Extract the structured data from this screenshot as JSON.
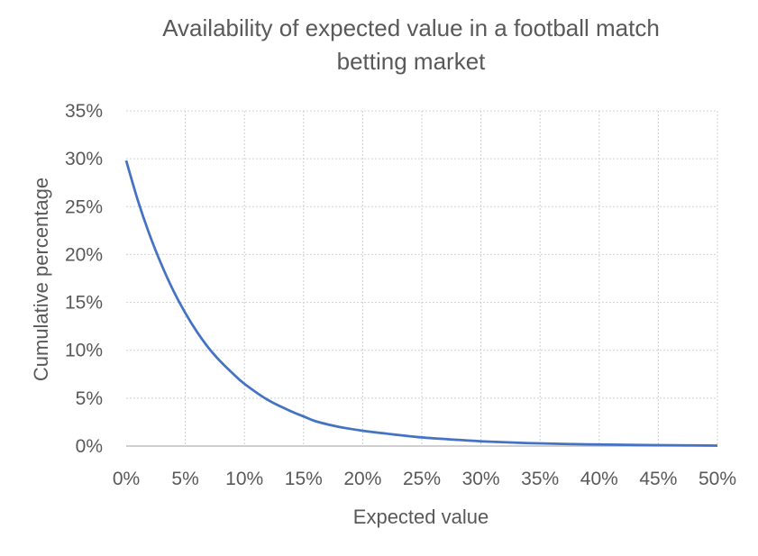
{
  "chart_data": {
    "type": "line",
    "title": "Availability of expected value in a football match betting market",
    "title_lines": [
      "Availability of expected value in a football match",
      "betting market"
    ],
    "xlabel": "Expected value",
    "ylabel": "Cumulative percentage",
    "xlim": [
      0,
      0.5
    ],
    "ylim": [
      0,
      0.35
    ],
    "x_ticks": [
      0,
      0.05,
      0.1,
      0.15,
      0.2,
      0.25,
      0.3,
      0.35,
      0.4,
      0.45,
      0.5
    ],
    "x_tick_labels": [
      "0%",
      "5%",
      "10%",
      "15%",
      "20%",
      "25%",
      "30%",
      "35%",
      "40%",
      "45%",
      "50%"
    ],
    "y_ticks": [
      0,
      0.05,
      0.1,
      0.15,
      0.2,
      0.25,
      0.3,
      0.35
    ],
    "y_tick_labels": [
      "0%",
      "5%",
      "10%",
      "15%",
      "20%",
      "25%",
      "30%",
      "35%"
    ],
    "grid": true,
    "legend": "none",
    "series": [
      {
        "name": "Cumulative percentage",
        "color": "#4472C4",
        "x": [
          0,
          0.01,
          0.02,
          0.03,
          0.04,
          0.05,
          0.06,
          0.07,
          0.08,
          0.09,
          0.1,
          0.12,
          0.14,
          0.15,
          0.16,
          0.18,
          0.2,
          0.22,
          0.25,
          0.28,
          0.3,
          0.33,
          0.35,
          0.38,
          0.4,
          0.43,
          0.45,
          0.48,
          0.5
        ],
        "y": [
          0.298,
          0.256,
          0.22,
          0.189,
          0.162,
          0.139,
          0.119,
          0.102,
          0.088,
          0.076,
          0.065,
          0.048,
          0.036,
          0.031,
          0.026,
          0.02,
          0.016,
          0.013,
          0.009,
          0.0065,
          0.005,
          0.0035,
          0.0028,
          0.002,
          0.0016,
          0.0012,
          0.001,
          0.0007,
          0.0005
        ]
      }
    ]
  }
}
